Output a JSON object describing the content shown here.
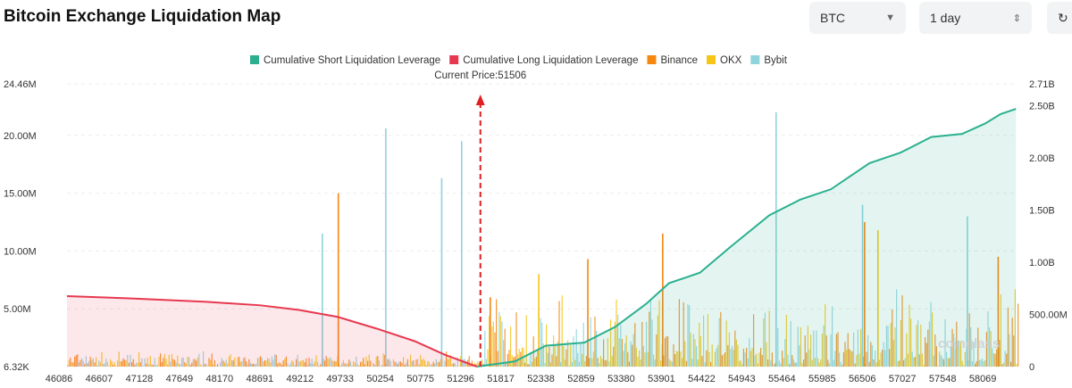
{
  "header": {
    "title": "Bitcoin Exchange Liquidation Map",
    "coin_select": "BTC",
    "range_select": "1 day",
    "refresh_icon": "refresh-icon"
  },
  "chart_data": {
    "type": "bar+area",
    "current_price_label": "Current Price:51506",
    "current_price": 51506,
    "legend": [
      "Cumulative Short Liquidation Leverage",
      "Cumulative Long Liquidation Leverage",
      "Binance",
      "OKX",
      "Bybit"
    ],
    "colors": {
      "short": "#2bb08f",
      "long": "#e8384f",
      "binance": "#f5870f",
      "okx": "#f5c518",
      "bybit": "#8fd3dd"
    },
    "x_ticks": [
      "46086",
      "46607",
      "47128",
      "47649",
      "48170",
      "48691",
      "49212",
      "49733",
      "50254",
      "50775",
      "51296",
      "51817",
      "52338",
      "52859",
      "53380",
      "53901",
      "54422",
      "54943",
      "55464",
      "55985",
      "56506",
      "57027",
      "57548",
      "58069"
    ],
    "left_ticks": [
      {
        "v": 6320,
        "label": "6.32K"
      },
      {
        "v": 5000000,
        "label": "5.00M"
      },
      {
        "v": 10000000,
        "label": "10.00M"
      },
      {
        "v": 15000000,
        "label": "15.00M"
      },
      {
        "v": 20000000,
        "label": "20.00M"
      },
      {
        "v": 24460000,
        "label": "24.46M"
      }
    ],
    "right_ticks": [
      {
        "v": 0,
        "label": "0"
      },
      {
        "v": 500000000,
        "label": "500.00M"
      },
      {
        "v": 1000000000,
        "label": "1.00B"
      },
      {
        "v": 1500000000,
        "label": "1.50B"
      },
      {
        "v": 2000000000,
        "label": "2.00B"
      },
      {
        "v": 2500000000,
        "label": "2.50B"
      },
      {
        "v": 2710000000,
        "label": "2.71B"
      }
    ],
    "xlim": [
      46086,
      58530
    ],
    "ylim_left": [
      0,
      24460000
    ],
    "ylim_right": [
      0,
      2710000000
    ],
    "cumulative_short": [
      [
        51506,
        0
      ],
      [
        52000,
        0.05
      ],
      [
        52400,
        0.2
      ],
      [
        52900,
        0.23
      ],
      [
        53300,
        0.38
      ],
      [
        53700,
        0.6
      ],
      [
        54000,
        0.8
      ],
      [
        54400,
        0.9
      ],
      [
        54800,
        1.15
      ],
      [
        55300,
        1.45
      ],
      [
        55700,
        1.6
      ],
      [
        56100,
        1.7
      ],
      [
        56300,
        1.8
      ],
      [
        56600,
        1.95
      ],
      [
        57000,
        2.05
      ],
      [
        57400,
        2.2
      ],
      [
        57800,
        2.23
      ],
      [
        58100,
        2.33
      ],
      [
        58300,
        2.42
      ],
      [
        58500,
        2.47
      ]
    ],
    "cumulative_short_unit": "B",
    "cumulative_long": [
      [
        46086,
        6.1
      ],
      [
        47000,
        5.9
      ],
      [
        48000,
        5.6
      ],
      [
        48700,
        5.3
      ],
      [
        49200,
        4.9
      ],
      [
        49700,
        4.3
      ],
      [
        50200,
        3.3
      ],
      [
        50700,
        2.2
      ],
      [
        51100,
        1.0
      ],
      [
        51506,
        0
      ]
    ],
    "cumulative_long_unit": "M",
    "bar_peaks": {
      "bybit": [
        [
          49493,
          11.5
        ],
        [
          50316,
          20.6
        ],
        [
          51041,
          16.3
        ],
        [
          51300,
          19.5
        ],
        [
          55379,
          22.0
        ],
        [
          56500,
          14.0
        ],
        [
          57860,
          13.0
        ]
      ],
      "binance": [
        [
          49700,
          15.0
        ],
        [
          51671,
          6.0
        ],
        [
          52937,
          9.3
        ],
        [
          53908,
          11.5
        ],
        [
          56527,
          12.5
        ],
        [
          58260,
          9.5
        ]
      ],
      "okx": [
        [
          52300,
          8.0
        ],
        [
          56700,
          11.8
        ]
      ],
      "unit": "M"
    },
    "watermark": "coinglass"
  }
}
